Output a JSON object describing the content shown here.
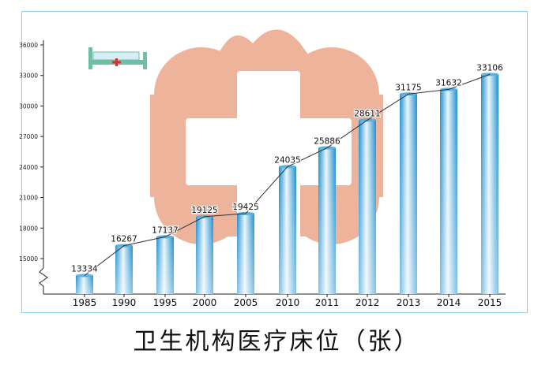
{
  "title": "卫生机构医疗床位（张）",
  "colors": {
    "frame": "#8fd4ec",
    "bar_dark": "#1f8fd0",
    "bar_light": "#e9f6fc",
    "watermark": "#eba68a",
    "trend_line": "#333333",
    "axis": "#222222"
  },
  "icons": [
    "hospital-bed-icon",
    "red-cross-watermark"
  ],
  "chart_data": {
    "type": "bar",
    "title": "卫生机构医疗床位（张）",
    "xlabel": "",
    "ylabel": "",
    "categories": [
      "1985",
      "1990",
      "1995",
      "2000",
      "2005",
      "2010",
      "2011",
      "2012",
      "2013",
      "2014",
      "2015"
    ],
    "values": [
      13334,
      16267,
      17137,
      19125,
      19425,
      24035,
      25886,
      28611,
      31175,
      31632,
      33106
    ],
    "data_labels": [
      "13334",
      "16267",
      "17137",
      "19125",
      "19425",
      "24035",
      "25886",
      "28611",
      "31175",
      "31632",
      "33106"
    ],
    "y_ticks": [
      15000,
      18000,
      21000,
      24000,
      27000,
      30000,
      33000,
      36000
    ],
    "y_tick_labels": [
      "15000",
      "18000",
      "21000",
      "24000",
      "27000",
      "30000",
      "33000",
      "36000"
    ],
    "ylim": [
      12000,
      36000
    ],
    "axis_break": true,
    "trend_line": true,
    "grid": false,
    "legend": "none"
  }
}
